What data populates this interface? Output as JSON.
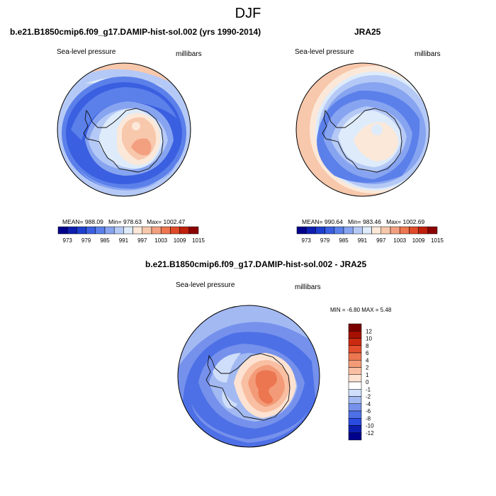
{
  "figure": {
    "season": "DJF"
  },
  "colors": {
    "bar_scale": [
      "#00008b",
      "#0d1fb0",
      "#1d3fce",
      "#3a5fe0",
      "#5b80ea",
      "#87a4f0",
      "#b5c9f6",
      "#deebfa",
      "#fbe8d8",
      "#f8c8ac",
      "#f3a080",
      "#ec7650",
      "#e04a28",
      "#c0200c",
      "#8b0000"
    ],
    "diff_scale": [
      "#00008b",
      "#0d1fb0",
      "#2a4be0",
      "#4d70e6",
      "#7591ec",
      "#a3b9f2",
      "#cfdefa",
      "#ffffff",
      "#fde2d2",
      "#f9bfa2",
      "#f39b78",
      "#ec7650",
      "#e34e2c",
      "#cc2a10",
      "#a51000",
      "#7a0000"
    ],
    "coast": "#111111",
    "outline": "#000000"
  },
  "chart_data": [
    {
      "type": "heatmap",
      "title": "b.e21.B1850cmip6.f09_g17.DAMIP-hist-sol.002 (yrs 1990-2014)",
      "field_label": "Sea-level pressure",
      "units_label": "millibars",
      "stats": {
        "mean_text": "MEAN= 988.09",
        "min_text": "Min= 978.63",
        "max_text": "Max= 1002.47"
      },
      "mean": 988.09,
      "min": 978.63,
      "max": 1002.47,
      "colorbar": {
        "orientation": "horizontal",
        "levels": [
          973,
          976,
          979,
          982,
          985,
          988,
          991,
          994,
          997,
          1000,
          1003,
          1006,
          1009,
          1012,
          1015,
          1018
        ],
        "tick_labels": [
          "973",
          "979",
          "985",
          "991",
          "997",
          "1003",
          "1009",
          "1015"
        ]
      }
    },
    {
      "type": "heatmap",
      "title": "JRA25",
      "field_label": "Sea-level pressure",
      "units_label": "millibars",
      "stats": {
        "mean_text": "MEAN= 990.64",
        "min_text": "Min= 983.46",
        "max_text": "Max= 1002.69"
      },
      "mean": 990.64,
      "min": 983.46,
      "max": 1002.69,
      "colorbar": {
        "orientation": "horizontal",
        "levels": [
          973,
          976,
          979,
          982,
          985,
          988,
          991,
          994,
          997,
          1000,
          1003,
          1006,
          1009,
          1012,
          1015,
          1018
        ],
        "tick_labels": [
          "973",
          "979",
          "985",
          "991",
          "997",
          "1003",
          "1009",
          "1015"
        ]
      }
    },
    {
      "type": "heatmap",
      "title": "b.e21.B1850cmip6.f09_g17.DAMIP-hist-sol.002 - JRA25",
      "field_label": "Sea-level pressure",
      "units_label": "millibars",
      "stats": {
        "minmax_text": "MIN = -6.80 MAX =   5.48"
      },
      "min": -6.8,
      "max": 5.48,
      "colorbar": {
        "orientation": "vertical",
        "tick_labels": [
          "12",
          "10",
          "8",
          "6",
          "4",
          "2",
          "1",
          "0",
          "-1",
          "-2",
          "-4",
          "-6",
          "-8",
          "-10",
          "-12"
        ]
      }
    }
  ]
}
